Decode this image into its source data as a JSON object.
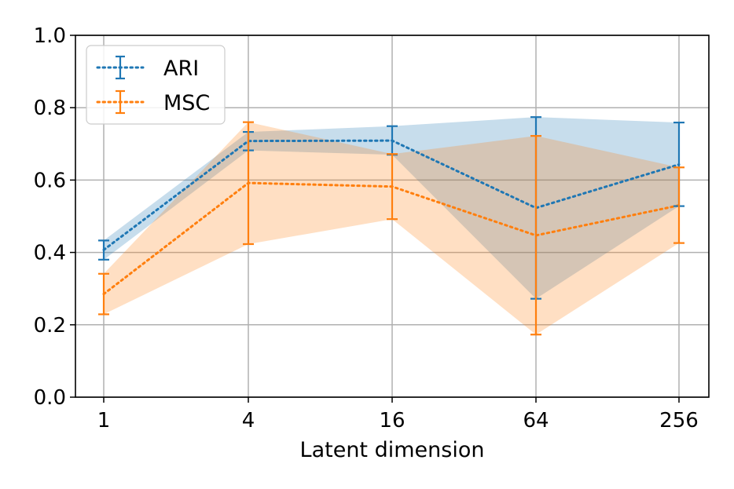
{
  "chart_data": {
    "type": "line",
    "title": "",
    "xlabel": "Latent dimension",
    "ylabel": "",
    "categories": [
      "1",
      "4",
      "16",
      "64",
      "256"
    ],
    "ylim": [
      0.0,
      1.0
    ],
    "yticks": [
      "0.0",
      "0.2",
      "0.4",
      "0.6",
      "0.8",
      "1.0"
    ],
    "grid": true,
    "legend_position": "top-left",
    "series": [
      {
        "name": "ARI",
        "color": "#1f77b4",
        "values": [
          0.407,
          0.708,
          0.709,
          0.523,
          0.643
        ],
        "lower": [
          0.38,
          0.682,
          0.67,
          0.272,
          0.528
        ],
        "upper": [
          0.433,
          0.733,
          0.749,
          0.774,
          0.759
        ]
      },
      {
        "name": "MSC",
        "color": "#ff7f0e",
        "values": [
          0.285,
          0.592,
          0.582,
          0.447,
          0.53
        ],
        "lower": [
          0.229,
          0.423,
          0.492,
          0.173,
          0.426
        ],
        "upper": [
          0.341,
          0.76,
          0.672,
          0.722,
          0.635
        ]
      }
    ]
  }
}
